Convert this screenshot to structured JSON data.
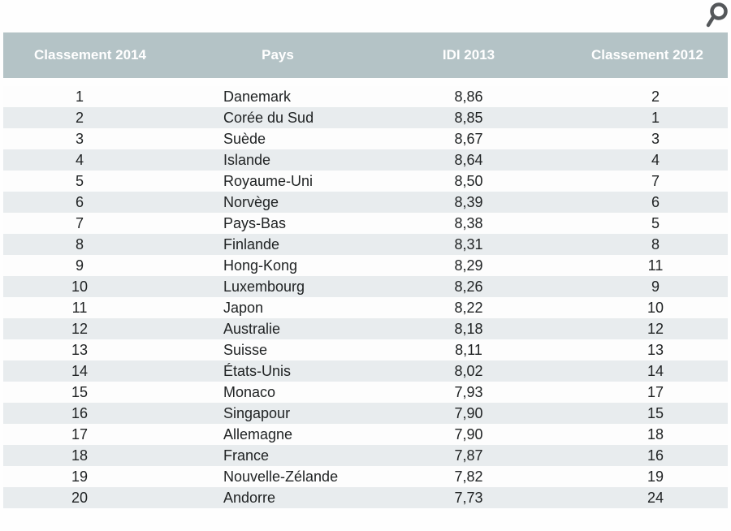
{
  "colors": {
    "header_bg": "#b4c3c6",
    "header_text": "#ffffff",
    "stripe_bg": "#e8ecee",
    "row_bg": "#fdfdfd",
    "data_text": "#202324",
    "icon": "#54575a"
  },
  "icons": {
    "magnifier": "search-magnifier-icon"
  },
  "chart_data": {
    "type": "table",
    "title": "",
    "columns": [
      "Classement 2014",
      "Pays",
      "IDI 2013",
      "Classement 2012"
    ],
    "rows": [
      [
        "1",
        "Danemark",
        "8,86",
        "2"
      ],
      [
        "2",
        "Corée du Sud",
        "8,85",
        "1"
      ],
      [
        "3",
        "Suède",
        "8,67",
        "3"
      ],
      [
        "4",
        "Islande",
        "8,64",
        "4"
      ],
      [
        "5",
        "Royaume-Uni",
        "8,50",
        "7"
      ],
      [
        "6",
        "Norvège",
        "8,39",
        "6"
      ],
      [
        "7",
        "Pays-Bas",
        "8,38",
        "5"
      ],
      [
        "8",
        "Finlande",
        "8,31",
        "8"
      ],
      [
        "9",
        "Hong-Kong",
        "8,29",
        "11"
      ],
      [
        "10",
        "Luxembourg",
        "8,26",
        "9"
      ],
      [
        "11",
        "Japon",
        "8,22",
        "10"
      ],
      [
        "12",
        "Australie",
        "8,18",
        "12"
      ],
      [
        "13",
        "Suisse",
        "8,11",
        "13"
      ],
      [
        "14",
        "États-Unis",
        "8,02",
        "14"
      ],
      [
        "15",
        "Monaco",
        "7,93",
        "17"
      ],
      [
        "16",
        "Singapour",
        "7,90",
        "15"
      ],
      [
        "17",
        "Allemagne",
        "7,90",
        "18"
      ],
      [
        "18",
        "France",
        "7,87",
        "16"
      ],
      [
        "19",
        "Nouvelle-Zélande",
        "7,82",
        "19"
      ],
      [
        "20",
        "Andorre",
        "7,73",
        "24"
      ]
    ]
  }
}
